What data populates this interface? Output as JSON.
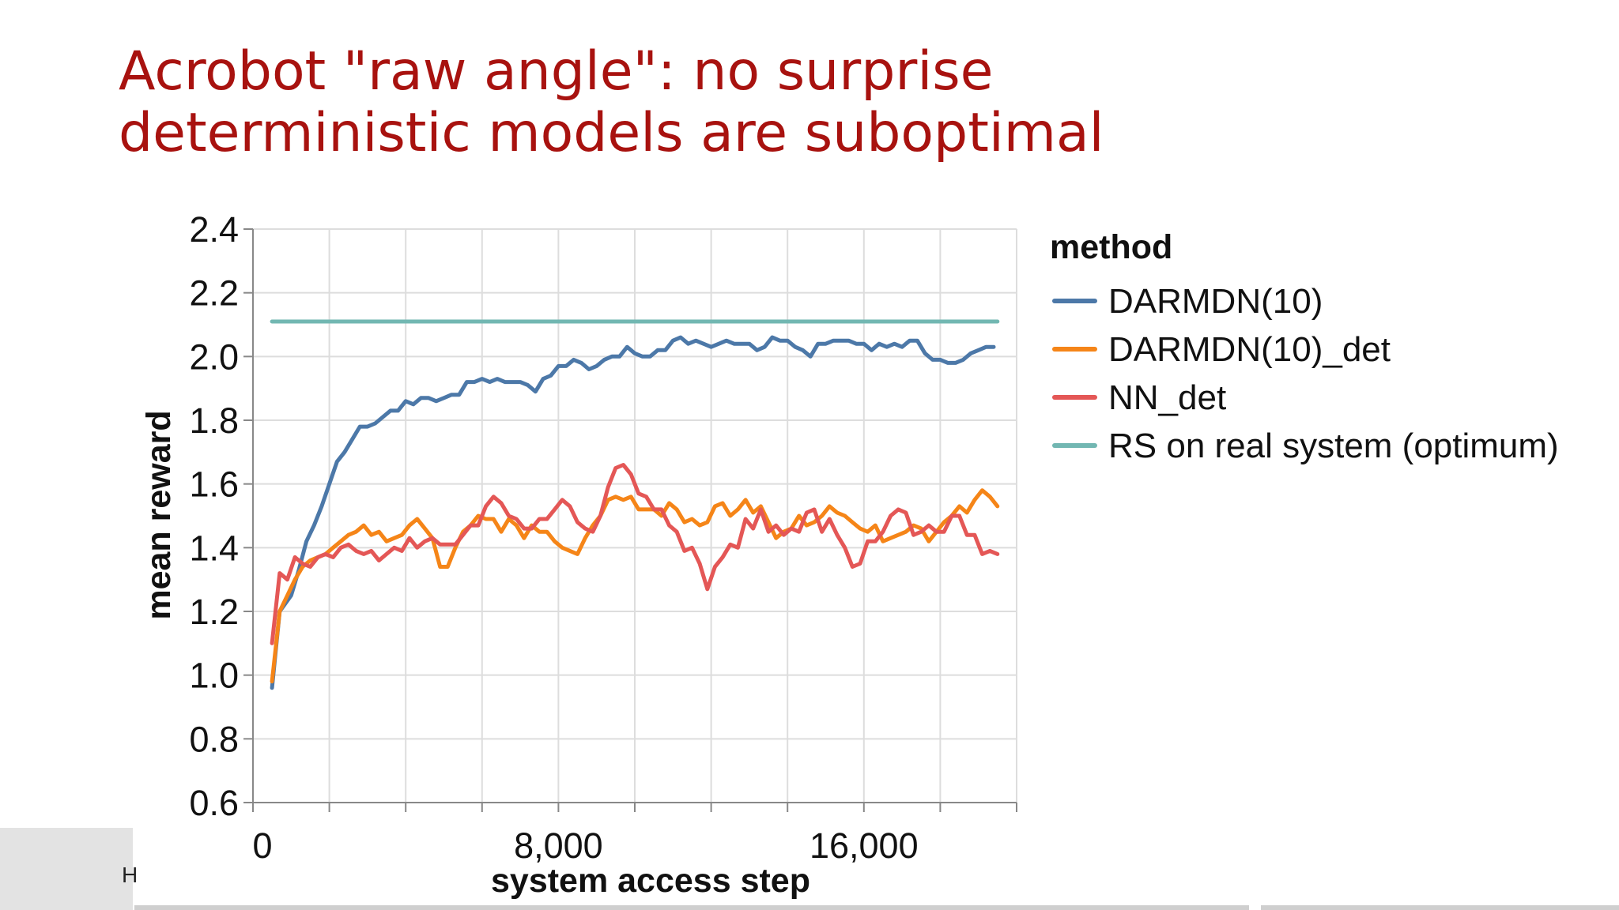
{
  "slide": {
    "title": "Acrobot \"raw angle\": no surprise\ndeterministic models are suboptimal",
    "footer_letter": "H"
  },
  "colors": {
    "title": "#a8120f",
    "grid": "#dddddd",
    "axis": "#888888"
  },
  "chart_data": {
    "type": "line",
    "xlabel": "system access step",
    "ylabel": "mean reward",
    "xlim": [
      0,
      20000
    ],
    "ylim": [
      0.6,
      2.4
    ],
    "x_ticks": [
      0,
      8000,
      16000
    ],
    "x_tick_labels": [
      "0",
      "8,000",
      "16,000"
    ],
    "x_grid": [
      2000,
      4000,
      6000,
      8000,
      10000,
      12000,
      14000,
      16000,
      18000,
      20000
    ],
    "y_ticks": [
      0.6,
      0.8,
      1.0,
      1.2,
      1.4,
      1.6,
      1.8,
      2.0,
      2.2,
      2.4
    ],
    "y_tick_labels": [
      "0.6",
      "0.8",
      "1.0",
      "1.2",
      "1.4",
      "1.6",
      "1.8",
      "2.0",
      "2.2",
      "2.4"
    ],
    "grid": true,
    "legend_title": "method",
    "legend_position": "right",
    "series": [
      {
        "name": "DARMDN(10)",
        "color": "#4c78a8",
        "x": [
          500,
          700,
          1000,
          1200,
          1400,
          1600,
          1800,
          2000,
          2200,
          2400,
          2600,
          2800,
          3000,
          3200,
          3400,
          3600,
          3800,
          4000,
          4200,
          4400,
          4600,
          4800,
          5000,
          5200,
          5400,
          5600,
          5800,
          6000,
          6200,
          6400,
          6600,
          6800,
          7000,
          7200,
          7400,
          7600,
          7800,
          8000,
          8200,
          8400,
          8600,
          8800,
          9000,
          9200,
          9400,
          9600,
          9800,
          10000,
          10200,
          10400,
          10600,
          10800,
          11000,
          11200,
          11400,
          11600,
          11800,
          12000,
          12200,
          12400,
          12600,
          12800,
          13000,
          13200,
          13400,
          13600,
          13800,
          14000,
          14200,
          14400,
          14600,
          14800,
          15000,
          15200,
          15400,
          15600,
          15800,
          16000,
          16200,
          16400,
          16600,
          16800,
          17000,
          17200,
          17400,
          17600,
          17800,
          18000,
          18200,
          18400,
          18600,
          18800,
          19000,
          19200,
          19400
        ],
        "y": [
          0.96,
          1.2,
          1.25,
          1.33,
          1.42,
          1.47,
          1.53,
          1.6,
          1.67,
          1.7,
          1.74,
          1.78,
          1.78,
          1.79,
          1.81,
          1.83,
          1.83,
          1.86,
          1.85,
          1.87,
          1.87,
          1.86,
          1.87,
          1.88,
          1.88,
          1.92,
          1.92,
          1.93,
          1.92,
          1.93,
          1.92,
          1.92,
          1.92,
          1.91,
          1.89,
          1.93,
          1.94,
          1.97,
          1.97,
          1.99,
          1.98,
          1.96,
          1.97,
          1.99,
          2.0,
          2.0,
          2.03,
          2.01,
          2.0,
          2.0,
          2.02,
          2.02,
          2.05,
          2.06,
          2.04,
          2.05,
          2.04,
          2.03,
          2.04,
          2.05,
          2.04,
          2.04,
          2.04,
          2.02,
          2.03,
          2.06,
          2.05,
          2.05,
          2.03,
          2.02,
          2.0,
          2.04,
          2.04,
          2.05,
          2.05,
          2.05,
          2.04,
          2.04,
          2.02,
          2.04,
          2.03,
          2.04,
          2.03,
          2.05,
          2.05,
          2.01,
          1.99,
          1.99,
          1.98,
          1.98,
          1.99,
          2.01,
          2.02,
          2.03,
          2.03
        ]
      },
      {
        "name": "DARMDN(10)_det",
        "color": "#f58518",
        "x": [
          500,
          700,
          900,
          1100,
          1300,
          1500,
          1700,
          1900,
          2100,
          2300,
          2500,
          2700,
          2900,
          3100,
          3300,
          3500,
          3700,
          3900,
          4100,
          4300,
          4500,
          4700,
          4900,
          5100,
          5300,
          5500,
          5700,
          5900,
          6100,
          6300,
          6500,
          6700,
          6900,
          7100,
          7300,
          7500,
          7700,
          7900,
          8100,
          8300,
          8500,
          8700,
          8900,
          9100,
          9300,
          9500,
          9700,
          9900,
          10100,
          10300,
          10500,
          10700,
          10900,
          11100,
          11300,
          11500,
          11700,
          11900,
          12100,
          12300,
          12500,
          12700,
          12900,
          13100,
          13300,
          13500,
          13700,
          13900,
          14100,
          14300,
          14500,
          14700,
          14900,
          15100,
          15300,
          15500,
          15700,
          15900,
          16100,
          16300,
          16500,
          16700,
          16900,
          17100,
          17300,
          17500,
          17700,
          17900,
          18100,
          18300,
          18500,
          18700,
          18900,
          19100,
          19300,
          19500
        ],
        "y": [
          0.98,
          1.2,
          1.25,
          1.3,
          1.34,
          1.36,
          1.37,
          1.38,
          1.4,
          1.42,
          1.44,
          1.45,
          1.47,
          1.44,
          1.45,
          1.42,
          1.43,
          1.44,
          1.47,
          1.49,
          1.46,
          1.43,
          1.34,
          1.34,
          1.4,
          1.45,
          1.47,
          1.5,
          1.49,
          1.49,
          1.45,
          1.49,
          1.47,
          1.43,
          1.47,
          1.45,
          1.45,
          1.42,
          1.4,
          1.39,
          1.38,
          1.43,
          1.47,
          1.5,
          1.55,
          1.56,
          1.55,
          1.56,
          1.52,
          1.52,
          1.52,
          1.5,
          1.54,
          1.52,
          1.48,
          1.49,
          1.47,
          1.48,
          1.53,
          1.54,
          1.5,
          1.52,
          1.55,
          1.51,
          1.53,
          1.48,
          1.43,
          1.45,
          1.46,
          1.5,
          1.47,
          1.48,
          1.5,
          1.53,
          1.51,
          1.5,
          1.48,
          1.46,
          1.45,
          1.47,
          1.42,
          1.43,
          1.44,
          1.45,
          1.47,
          1.46,
          1.42,
          1.45,
          1.48,
          1.5,
          1.53,
          1.51,
          1.55,
          1.58,
          1.56,
          1.53
        ]
      },
      {
        "name": "NN_det",
        "color": "#e45756",
        "x": [
          500,
          700,
          900,
          1100,
          1300,
          1500,
          1700,
          1900,
          2100,
          2300,
          2500,
          2700,
          2900,
          3100,
          3300,
          3500,
          3700,
          3900,
          4100,
          4300,
          4500,
          4700,
          4900,
          5100,
          5300,
          5500,
          5700,
          5900,
          6100,
          6300,
          6500,
          6700,
          6900,
          7100,
          7300,
          7500,
          7700,
          7900,
          8100,
          8300,
          8500,
          8700,
          8900,
          9100,
          9300,
          9500,
          9700,
          9900,
          10100,
          10300,
          10500,
          10700,
          10900,
          11100,
          11300,
          11500,
          11700,
          11900,
          12100,
          12300,
          12500,
          12700,
          12900,
          13100,
          13300,
          13500,
          13700,
          13900,
          14100,
          14300,
          14500,
          14700,
          14900,
          15100,
          15300,
          15500,
          15700,
          15900,
          16100,
          16300,
          16500,
          16700,
          16900,
          17100,
          17300,
          17500,
          17700,
          17900,
          18100,
          18300,
          18500,
          18700,
          18900,
          19100,
          19300,
          19500
        ],
        "y": [
          1.1,
          1.32,
          1.3,
          1.37,
          1.35,
          1.34,
          1.37,
          1.38,
          1.37,
          1.4,
          1.41,
          1.39,
          1.38,
          1.39,
          1.36,
          1.38,
          1.4,
          1.39,
          1.43,
          1.4,
          1.42,
          1.43,
          1.41,
          1.41,
          1.41,
          1.44,
          1.47,
          1.47,
          1.53,
          1.56,
          1.54,
          1.5,
          1.49,
          1.46,
          1.46,
          1.49,
          1.49,
          1.52,
          1.55,
          1.53,
          1.48,
          1.46,
          1.45,
          1.5,
          1.59,
          1.65,
          1.66,
          1.63,
          1.57,
          1.56,
          1.52,
          1.52,
          1.47,
          1.45,
          1.39,
          1.4,
          1.35,
          1.27,
          1.34,
          1.37,
          1.41,
          1.4,
          1.49,
          1.46,
          1.52,
          1.45,
          1.47,
          1.44,
          1.46,
          1.45,
          1.51,
          1.52,
          1.45,
          1.49,
          1.44,
          1.4,
          1.34,
          1.35,
          1.42,
          1.42,
          1.45,
          1.5,
          1.52,
          1.51,
          1.44,
          1.45,
          1.47,
          1.45,
          1.45,
          1.5,
          1.5,
          1.44,
          1.44,
          1.38,
          1.39,
          1.38
        ]
      },
      {
        "name": "RS on real system (optimum)",
        "color": "#72b7b2",
        "x": [
          500,
          19500
        ],
        "y": [
          2.11,
          2.11
        ]
      }
    ]
  }
}
